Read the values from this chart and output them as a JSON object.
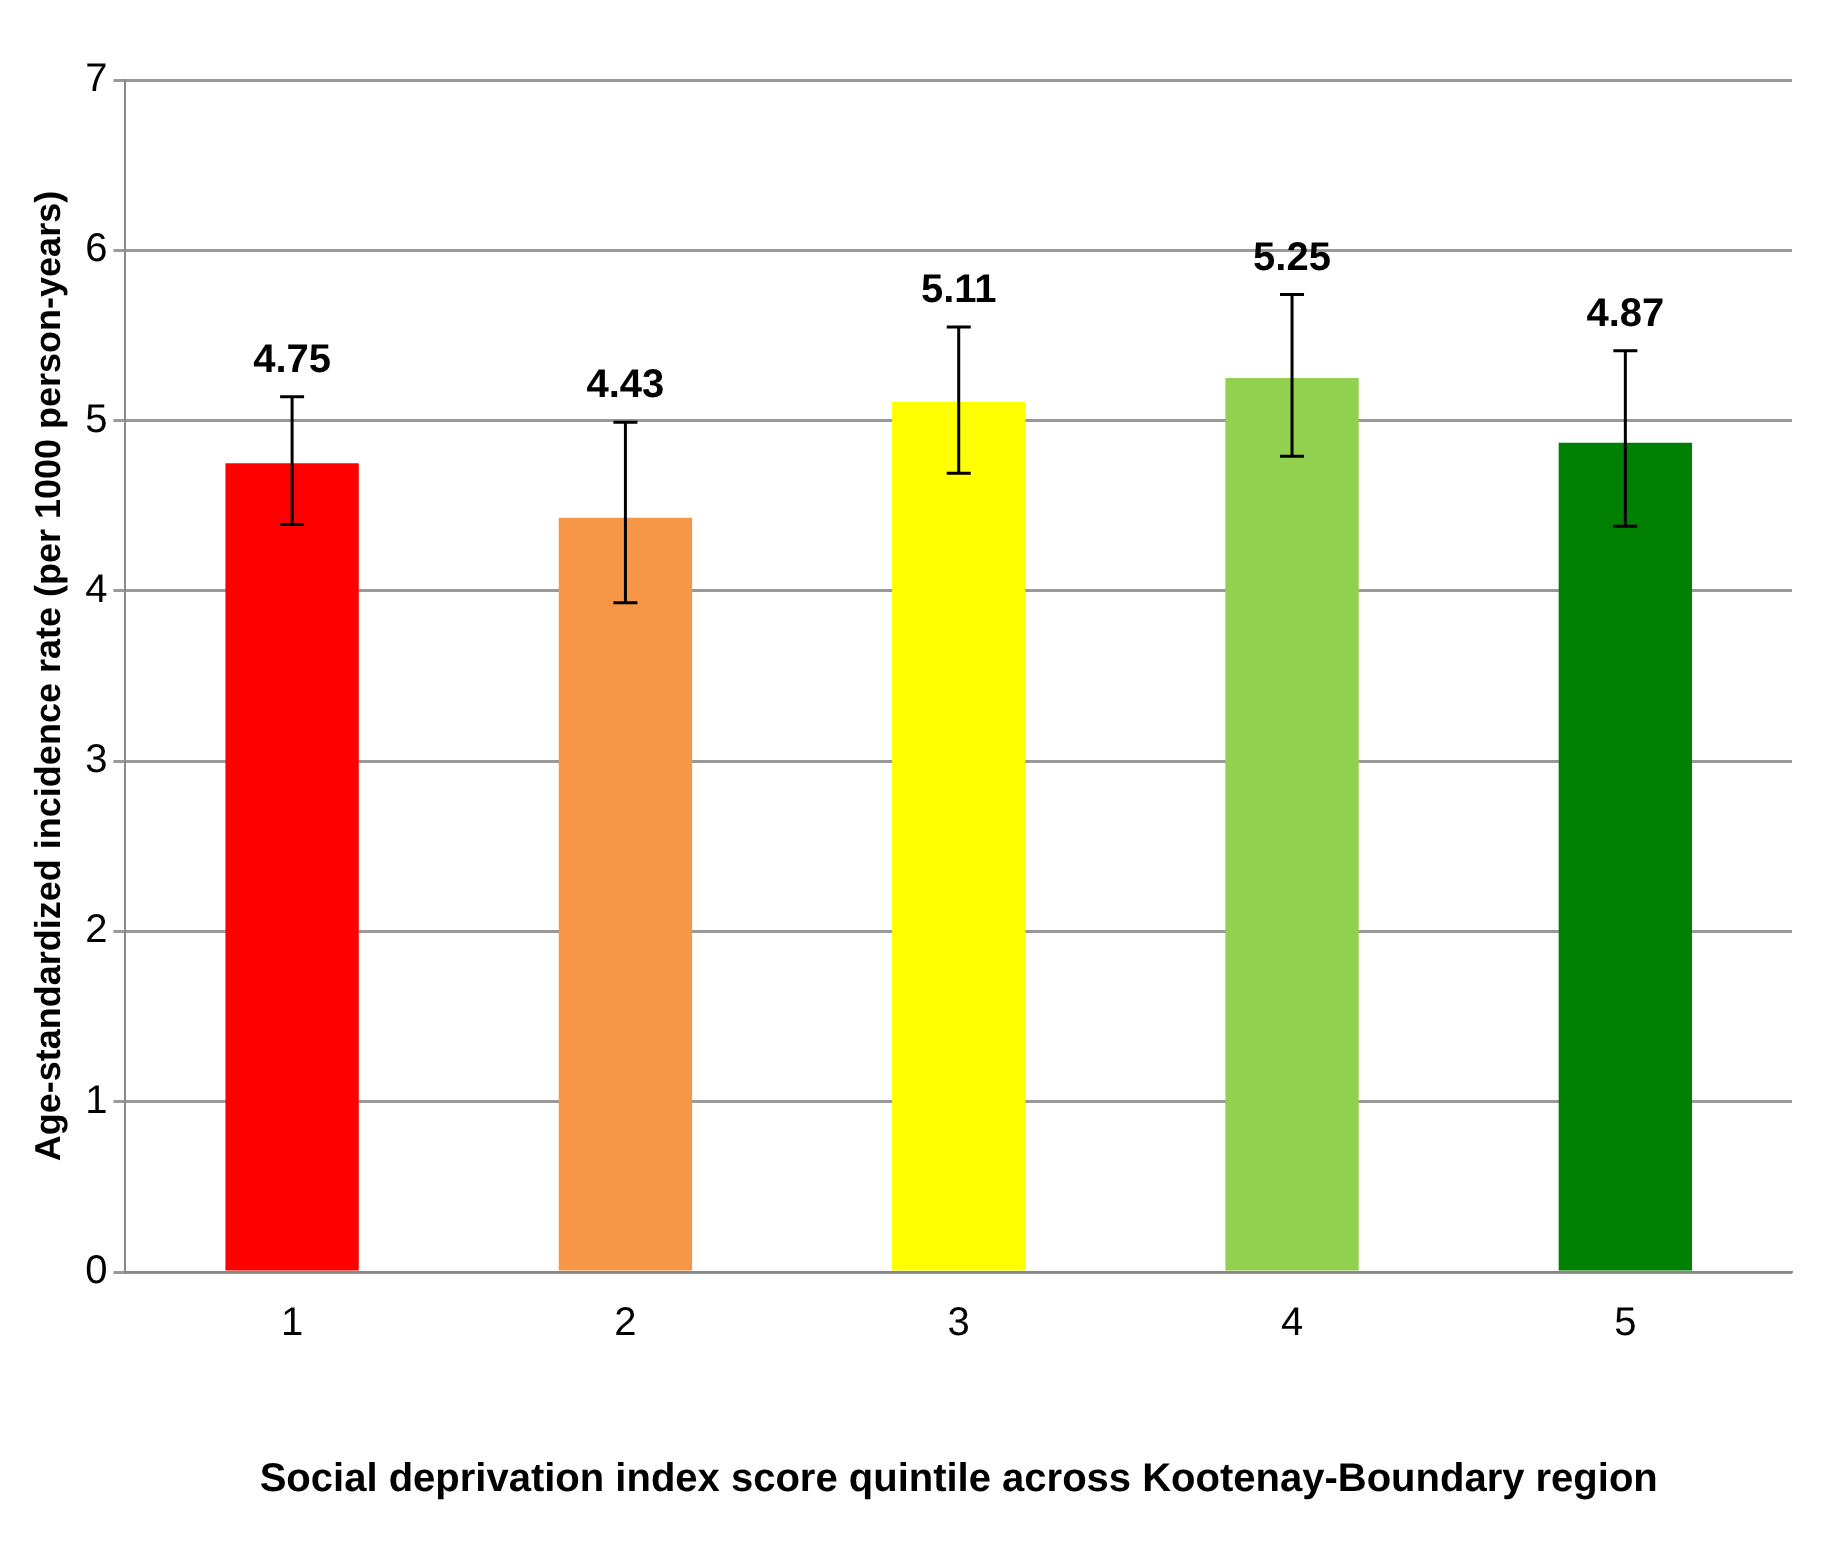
{
  "chart_data": {
    "type": "bar",
    "xlabel": "Social deprivation index score quintile across Kootenay-Boundary region",
    "ylabel": "Age-standardized incidence rate (per 1000 person-years)",
    "categories": [
      "1",
      "2",
      "3",
      "4",
      "5"
    ],
    "values": [
      4.75,
      4.43,
      5.11,
      5.25,
      4.87
    ],
    "colors": [
      "#ff0000",
      "#f79646",
      "#ffff00",
      "#92d050",
      "#008000"
    ],
    "errors": [
      [
        4.39,
        5.14
      ],
      [
        3.93,
        4.99
      ],
      [
        4.69,
        5.55
      ],
      [
        4.79,
        5.74
      ],
      [
        4.38,
        5.41
      ]
    ],
    "ylim": [
      0,
      7
    ],
    "yticks": [
      0,
      1,
      2,
      3,
      4,
      5,
      6,
      7
    ],
    "grid": "y",
    "data_labels": true,
    "legend": false
  }
}
